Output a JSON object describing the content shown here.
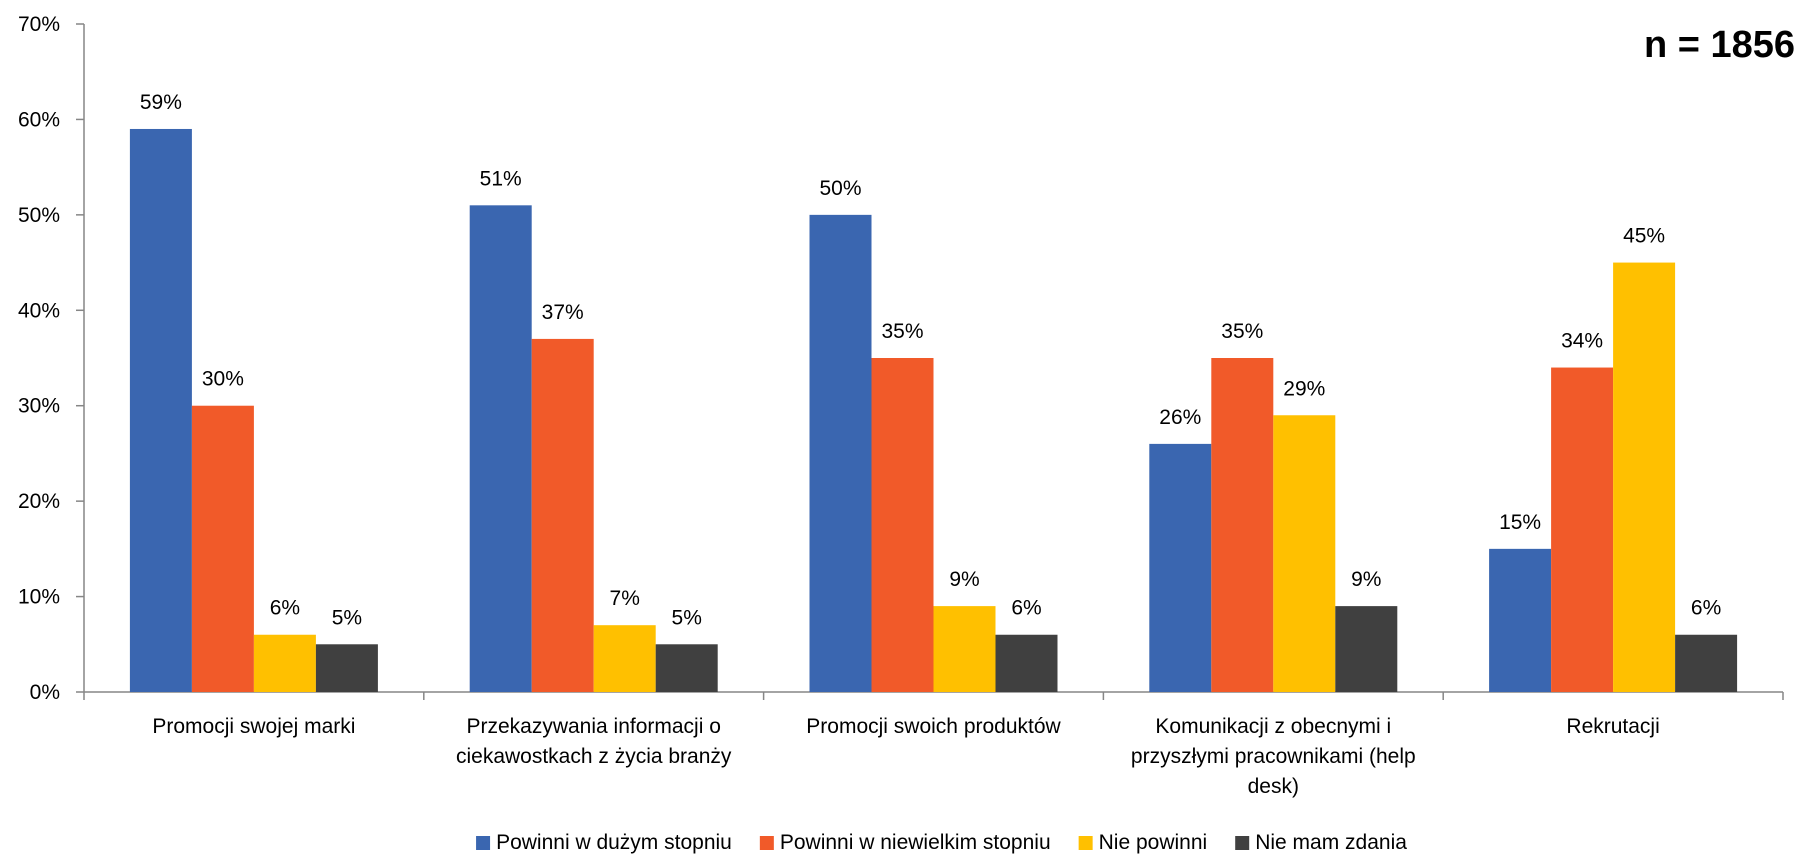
{
  "chart_data": {
    "type": "bar",
    "categories": [
      [
        "Promocji swojej marki"
      ],
      [
        "Przekazywania informacji o",
        "ciekawostkach z życia branży"
      ],
      [
        "Promocji swoich produktów"
      ],
      [
        "Komunikacji z obecnymi i",
        "przyszłymi pracownikami (help",
        "desk)"
      ],
      [
        "Rekrutacji"
      ]
    ],
    "series": [
      {
        "name": "Powinni w dużym stopniu",
        "color": "#3a66b0",
        "values": [
          59,
          51,
          50,
          26,
          15
        ],
        "labels": [
          "59%",
          "51%",
          "50%",
          "26%",
          "15%"
        ]
      },
      {
        "name": "Powinni w niewielkim stopniu",
        "color": "#f15a29",
        "values": [
          30,
          37,
          35,
          35,
          34
        ],
        "labels": [
          "30%",
          "37%",
          "35%",
          "35%",
          "34%"
        ]
      },
      {
        "name": "Nie powinni",
        "color": "#ffc000",
        "values": [
          6,
          7,
          9,
          29,
          45
        ],
        "labels": [
          "6%",
          "7%",
          "9%",
          "29%",
          "45%"
        ]
      },
      {
        "name": "Nie mam zdania",
        "color": "#404040",
        "values": [
          5,
          5,
          6,
          9,
          6
        ],
        "labels": [
          "5%",
          "5%",
          "6%",
          "9%",
          "6%"
        ]
      }
    ],
    "yticks": [
      "0%",
      "10%",
      "20%",
      "30%",
      "40%",
      "50%",
      "60%",
      "70%"
    ],
    "ylim": [
      0,
      70
    ],
    "grid": false,
    "legend": "bottom",
    "annotation": "n = 1856"
  }
}
